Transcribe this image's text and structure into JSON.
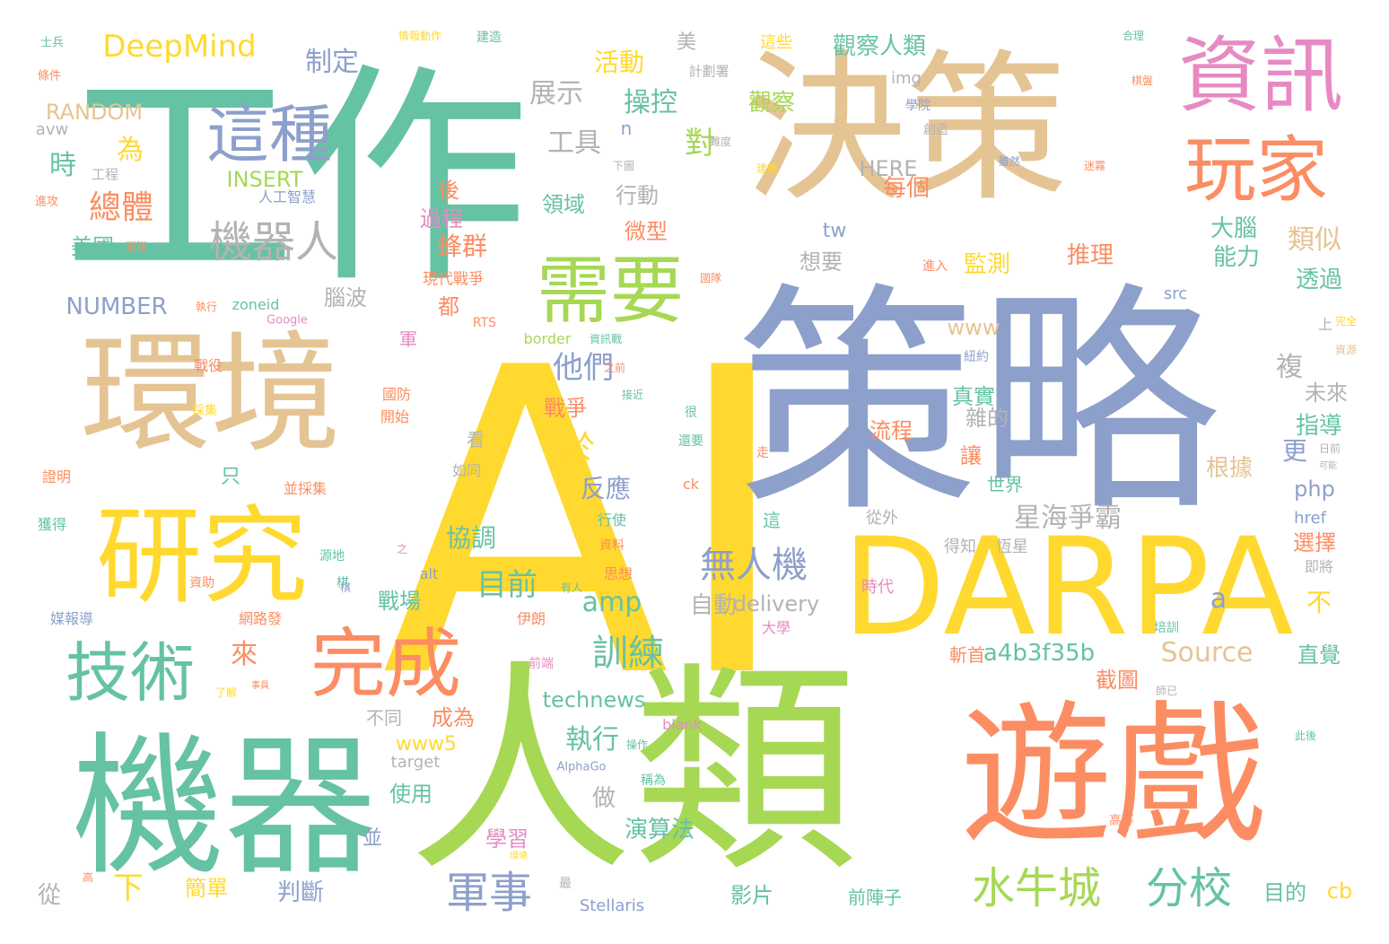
{
  "colors": {
    "green": "#66c2a5",
    "orange": "#fc8d62",
    "blue": "#8da0cb",
    "pink": "#e78ac3",
    "lime": "#a6d854",
    "yellow": "#ffd92f",
    "tan": "#e5c494",
    "gray": "#b3b3b3"
  },
  "words": [
    {
      "text": "AI",
      "color": "yellow"
    },
    {
      "text": "人類",
      "color": "lime"
    },
    {
      "text": "策略",
      "color": "blue"
    },
    {
      "text": "決策",
      "color": "tan"
    },
    {
      "text": "工作",
      "color": "green"
    },
    {
      "text": "遊戲",
      "color": "orange"
    },
    {
      "text": "機器",
      "color": "green"
    },
    {
      "text": "環境",
      "color": "tan"
    },
    {
      "text": "DARPA",
      "color": "yellow"
    },
    {
      "text": "研究",
      "color": "yellow"
    },
    {
      "text": "資訊",
      "color": "pink"
    },
    {
      "text": "玩家",
      "color": "orange"
    },
    {
      "text": "需要",
      "color": "lime"
    },
    {
      "text": "這種",
      "color": "blue"
    },
    {
      "text": "技術",
      "color": "green"
    },
    {
      "text": "完成",
      "color": "orange"
    },
    {
      "text": "機器人",
      "color": "gray"
    },
    {
      "text": "軍事",
      "color": "blue"
    },
    {
      "text": "水牛城",
      "color": "lime"
    },
    {
      "text": "分校",
      "color": "green"
    },
    {
      "text": "DeepMind",
      "color": "yellow"
    },
    {
      "text": "無人機",
      "color": "blue"
    },
    {
      "text": "訓練",
      "color": "green"
    },
    {
      "text": "星海爭霸",
      "color": "gray"
    },
    {
      "text": "制定",
      "color": "blue"
    },
    {
      "text": "展示",
      "color": "gray"
    },
    {
      "text": "活動",
      "color": "yellow"
    },
    {
      "text": "觀察人類",
      "color": "green"
    },
    {
      "text": "觀察",
      "color": "lime"
    },
    {
      "text": "美",
      "color": "gray"
    },
    {
      "text": "計劃署",
      "color": "gray"
    },
    {
      "text": "這些",
      "color": "yellow"
    },
    {
      "text": "操控",
      "color": "green"
    },
    {
      "text": "對",
      "color": "lime"
    },
    {
      "text": "工具",
      "color": "gray"
    },
    {
      "text": "每個",
      "color": "orange"
    },
    {
      "text": "HERE",
      "color": "gray"
    },
    {
      "text": "img",
      "color": "gray"
    },
    {
      "text": "RANDOM",
      "color": "tan"
    },
    {
      "text": "avw",
      "color": "gray"
    },
    {
      "text": "INSERT",
      "color": "lime"
    },
    {
      "text": "NUMBER",
      "color": "blue"
    },
    {
      "text": "zoneid",
      "color": "green"
    },
    {
      "text": "Google",
      "color": "pink"
    },
    {
      "text": "時",
      "color": "green"
    },
    {
      "text": "為",
      "color": "yellow"
    },
    {
      "text": "總體",
      "color": "orange"
    },
    {
      "text": "美國",
      "color": "green"
    },
    {
      "text": "工程",
      "color": "gray"
    },
    {
      "text": "人工智慧",
      "color": "blue"
    },
    {
      "text": "腦波",
      "color": "gray"
    },
    {
      "text": "蜂群",
      "color": "orange"
    },
    {
      "text": "過程",
      "color": "pink"
    },
    {
      "text": "後",
      "color": "orange"
    },
    {
      "text": "都",
      "color": "orange"
    },
    {
      "text": "現代戰爭",
      "color": "orange"
    },
    {
      "text": "領域",
      "color": "green"
    },
    {
      "text": "行動",
      "color": "gray"
    },
    {
      "text": "微型",
      "color": "orange"
    },
    {
      "text": "想要",
      "color": "gray"
    },
    {
      "text": "tw",
      "color": "blue"
    },
    {
      "text": "www",
      "color": "tan"
    },
    {
      "text": "推理",
      "color": "orange"
    },
    {
      "text": "監測",
      "color": "yellow"
    },
    {
      "text": "大腦",
      "color": "green"
    },
    {
      "text": "能力",
      "color": "green"
    },
    {
      "text": "類似",
      "color": "tan"
    },
    {
      "text": "透過",
      "color": "green"
    },
    {
      "text": "src",
      "color": "blue"
    },
    {
      "text": "他們",
      "color": "blue"
    },
    {
      "text": "於",
      "color": "yellow"
    },
    {
      "text": "戰爭",
      "color": "orange"
    },
    {
      "text": "反應",
      "color": "blue"
    },
    {
      "text": "協調",
      "color": "green"
    },
    {
      "text": "目前",
      "color": "green"
    },
    {
      "text": "戰場",
      "color": "green"
    },
    {
      "text": "amp",
      "color": "green"
    },
    {
      "text": "自動",
      "color": "gray"
    },
    {
      "text": "delivery",
      "color": "gray"
    },
    {
      "text": "真實",
      "color": "green"
    },
    {
      "text": "雜的",
      "color": "gray"
    },
    {
      "text": "複",
      "color": "gray"
    },
    {
      "text": "流程",
      "color": "orange"
    },
    {
      "text": "未來",
      "color": "gray"
    },
    {
      "text": "指導",
      "color": "green"
    },
    {
      "text": "更",
      "color": "blue"
    },
    {
      "text": "讓",
      "color": "orange"
    },
    {
      "text": "世界",
      "color": "green"
    },
    {
      "text": "根據",
      "color": "tan"
    },
    {
      "text": "php",
      "color": "blue"
    },
    {
      "text": "href",
      "color": "blue"
    },
    {
      "text": "選擇",
      "color": "orange"
    },
    {
      "text": "從外",
      "color": "gray"
    },
    {
      "text": "得知",
      "color": "gray"
    },
    {
      "text": "恆星",
      "color": "gray"
    },
    {
      "text": "即將",
      "color": "gray"
    },
    {
      "text": "a",
      "color": "blue"
    },
    {
      "text": "a4b3f35b",
      "color": "green"
    },
    {
      "text": "Source",
      "color": "tan"
    },
    {
      "text": "不",
      "color": "yellow"
    },
    {
      "text": "直覺",
      "color": "green"
    },
    {
      "text": "截圖",
      "color": "orange"
    },
    {
      "text": "斬首",
      "color": "orange"
    },
    {
      "text": "目的",
      "color": "green"
    },
    {
      "text": "cb",
      "color": "yellow"
    },
    {
      "text": "來",
      "color": "orange"
    },
    {
      "text": "下",
      "color": "yellow"
    },
    {
      "text": "判斷",
      "color": "blue"
    },
    {
      "text": "technews",
      "color": "green"
    },
    {
      "text": "成為",
      "color": "orange"
    },
    {
      "text": "執行",
      "color": "green"
    },
    {
      "text": "做",
      "color": "gray"
    },
    {
      "text": "www5",
      "color": "yellow"
    },
    {
      "text": "target",
      "color": "gray"
    },
    {
      "text": "不同",
      "color": "gray"
    },
    {
      "text": "使用",
      "color": "green"
    },
    {
      "text": "學習",
      "color": "pink"
    },
    {
      "text": "演算法",
      "color": "green"
    },
    {
      "text": "並",
      "color": "blue"
    },
    {
      "text": "簡單",
      "color": "yellow"
    },
    {
      "text": "從",
      "color": "gray"
    },
    {
      "text": "影片",
      "color": "green"
    },
    {
      "text": "前陣子",
      "color": "green"
    },
    {
      "text": "Stellaris",
      "color": "blue"
    },
    {
      "text": "AlphaGo",
      "color": "blue"
    },
    {
      "text": "blank",
      "color": "pink"
    },
    {
      "text": "稱為",
      "color": "green"
    },
    {
      "text": "操作",
      "color": "green"
    },
    {
      "text": "高等",
      "color": "orange"
    },
    {
      "text": "此後",
      "color": "green"
    },
    {
      "text": "培訓",
      "color": "green"
    },
    {
      "text": "時代",
      "color": "pink"
    },
    {
      "text": "大學",
      "color": "pink"
    },
    {
      "text": "前端",
      "color": "pink"
    },
    {
      "text": "伊朗",
      "color": "orange"
    },
    {
      "text": "思想",
      "color": "orange"
    },
    {
      "text": "有人",
      "color": "green"
    },
    {
      "text": "棋",
      "color": "green"
    },
    {
      "text": "網路發",
      "color": "orange"
    },
    {
      "text": "媒報導",
      "color": "blue"
    },
    {
      "text": "資助",
      "color": "orange"
    },
    {
      "text": "源地",
      "color": "green"
    },
    {
      "text": "獲得",
      "color": "green"
    },
    {
      "text": "證明",
      "color": "orange"
    },
    {
      "text": "只",
      "color": "green"
    },
    {
      "text": "並採集",
      "color": "orange"
    },
    {
      "text": "看",
      "color": "gray"
    },
    {
      "text": "如同",
      "color": "gray"
    },
    {
      "text": "alt",
      "color": "blue"
    },
    {
      "text": "資料",
      "color": "orange"
    },
    {
      "text": "行使",
      "color": "green"
    },
    {
      "text": "這",
      "color": "green"
    },
    {
      "text": "ck",
      "color": "orange"
    },
    {
      "text": "還要",
      "color": "green"
    },
    {
      "text": "很",
      "color": "green"
    },
    {
      "text": "走",
      "color": "orange"
    },
    {
      "text": "接近",
      "color": "green"
    },
    {
      "text": "之前",
      "color": "orange"
    },
    {
      "text": "國防",
      "color": "orange"
    },
    {
      "text": "開始",
      "color": "orange"
    },
    {
      "text": "採集",
      "color": "yellow"
    },
    {
      "text": "戰役",
      "color": "orange"
    },
    {
      "text": "軍",
      "color": "pink"
    },
    {
      "text": "RTS",
      "color": "orange"
    },
    {
      "text": "border",
      "color": "lime"
    },
    {
      "text": "資訊戰",
      "color": "green"
    },
    {
      "text": "執行",
      "color": "orange"
    },
    {
      "text": "國隊",
      "color": "orange"
    },
    {
      "text": "進入",
      "color": "orange"
    },
    {
      "text": "紐約",
      "color": "blue"
    },
    {
      "text": "資源",
      "color": "tan"
    },
    {
      "text": "完全",
      "color": "yellow"
    },
    {
      "text": "上",
      "color": "gray"
    },
    {
      "text": "士兵",
      "color": "green"
    },
    {
      "text": "條件",
      "color": "orange"
    },
    {
      "text": "進攻",
      "color": "orange"
    },
    {
      "text": "軍隊",
      "color": "orange"
    },
    {
      "text": "情報動作",
      "color": "yellow"
    },
    {
      "text": "建造",
      "color": "green"
    },
    {
      "text": "合理",
      "color": "green"
    },
    {
      "text": "棋盤",
      "color": "orange"
    },
    {
      "text": "學院",
      "color": "blue"
    },
    {
      "text": "創造",
      "color": "gray"
    },
    {
      "text": "雖然",
      "color": "blue"
    },
    {
      "text": "迷霧",
      "color": "orange"
    },
    {
      "text": "建築",
      "color": "yellow"
    },
    {
      "text": "難度",
      "color": "gray"
    },
    {
      "text": "下圖",
      "color": "gray"
    },
    {
      "text": "n",
      "color": "blue"
    },
    {
      "text": "日前",
      "color": "gray"
    },
    {
      "text": "可能",
      "color": "gray"
    },
    {
      "text": "師已",
      "color": "gray"
    },
    {
      "text": "了解",
      "color": "yellow"
    },
    {
      "text": "事員",
      "color": "orange"
    },
    {
      "text": "高",
      "color": "orange"
    },
    {
      "text": "環境",
      "color": "yellow"
    },
    {
      "text": "最",
      "color": "gray"
    },
    {
      "text": "棋",
      "color": "blue"
    },
    {
      "text": "之",
      "color": "pink"
    }
  ]
}
